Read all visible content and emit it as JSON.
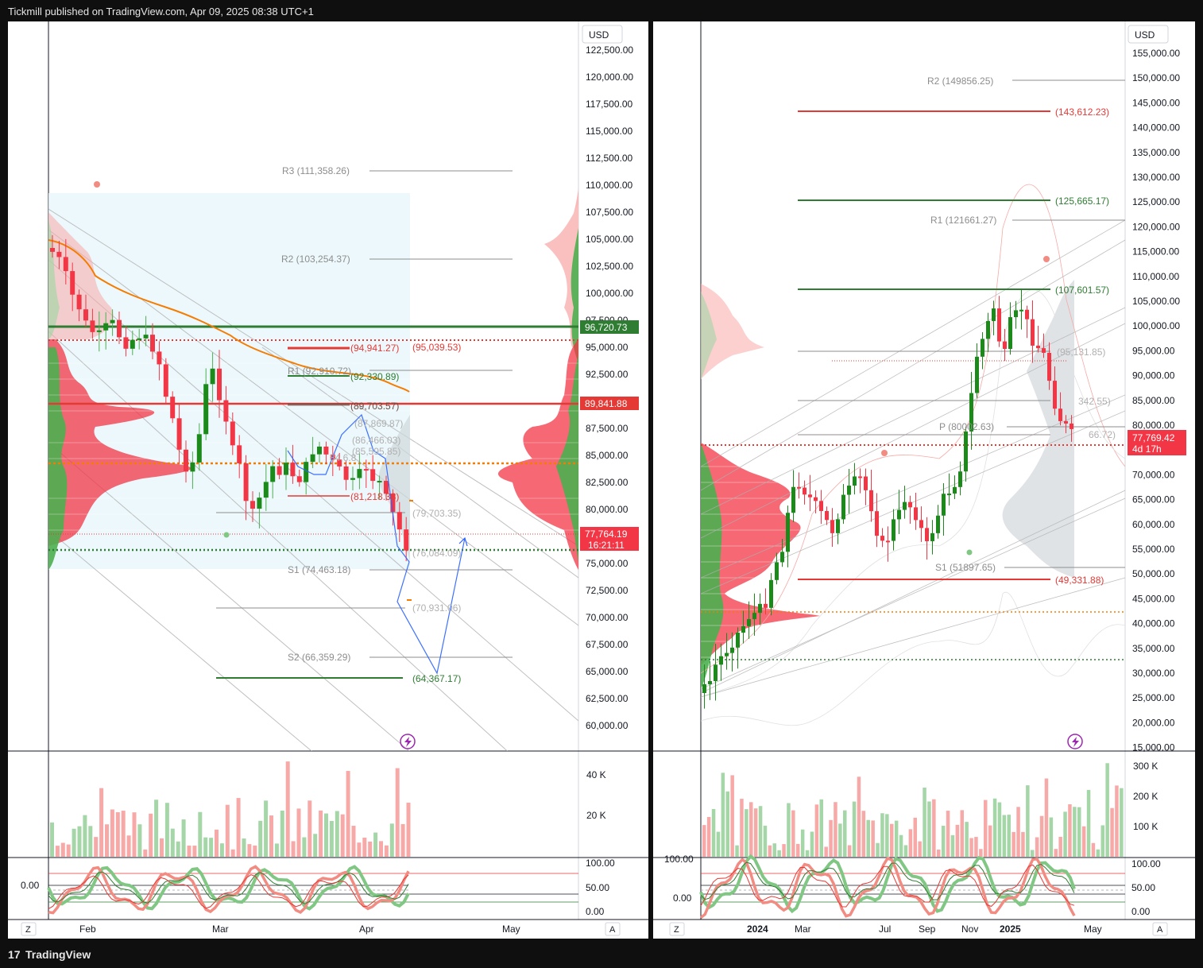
{
  "header": {
    "publish_text": "Tickmill published on TradingView.com, Apr 09, 2025 08:38 UTC+1"
  },
  "footer": {
    "brand": "TradingView",
    "logo_glyph": "17"
  },
  "left_chart": {
    "currency": "USD",
    "price_ticks": [
      "122,500.00",
      "120,000.00",
      "117,500.00",
      "115,000.00",
      "112,500.00",
      "110,000.00",
      "107,500.00",
      "105,000.00",
      "102,500.00",
      "100,000.00",
      "97,500.00",
      "95,000.00",
      "92,500.00",
      "90,000.00",
      "87,500.00",
      "85,000.00",
      "82,500.00",
      "80,000.00",
      "77,500.00",
      "75,000.00",
      "72,500.00",
      "70,000.00",
      "67,500.00",
      "65,000.00",
      "62,500.00",
      "60,000.00"
    ],
    "pivots": {
      "r3": "R3 (111,358.26)",
      "r2": "R2 (103,254.37)",
      "r1": "R1 (92,910.72)",
      "s1": "S1 (74,463.18)",
      "s2": "S2 (66,359.29)"
    },
    "levels": {
      "l1": "(94,941.27)",
      "l2": "(95,039.53)",
      "l3": "(92,330.89)",
      "l4": "(89,703.57)",
      "l5": "(87,869.87)",
      "l6": "(86,466.03)",
      "l7": "(85,595.85)",
      "l8": "(81,218.38)",
      "l9": "(79,703.35)",
      "l10": "(76,084.09)",
      "l11": "(70,931.06)",
      "l12": "(64,367.17)",
      "l13": "84,6.8"
    },
    "price_tags": {
      "green": "96,720.73",
      "red": "89,841.88",
      "current": "77,764.19",
      "countdown": "16:21:11"
    },
    "time_labels": [
      "Feb",
      "Mar",
      "Apr",
      "May"
    ],
    "volume_ticks": [
      "40 K",
      "20 K"
    ],
    "osc_ticks": [
      "100.00",
      "50.00",
      "0.00"
    ],
    "osc_left_value": "0.00",
    "corner_left": "Z",
    "corner_right": "A"
  },
  "right_chart": {
    "currency": "USD",
    "price_ticks": [
      "155,000.00",
      "150,000.00",
      "145,000.00",
      "140,000.00",
      "135,000.00",
      "130,000.00",
      "125,000.00",
      "120,000.00",
      "115,000.00",
      "110,000.00",
      "105,000.00",
      "100,000.00",
      "95,000.00",
      "90,000.00",
      "85,000.00",
      "80,000.00",
      "75,000.00",
      "70,000.00",
      "65,000.00",
      "60,000.00",
      "55,000.00",
      "50,000.00",
      "45,000.00",
      "40,000.00",
      "35,000.00",
      "30,000.00",
      "25,000.00",
      "20,000.00",
      "15,000.00"
    ],
    "pivots": {
      "r2": "R2 (149856.25)",
      "r1": "R1 (121661.27)",
      "p": "P (80002.63)",
      "s1": "S1 (51897.65)"
    },
    "levels": {
      "l1": "(143,612.23)",
      "l2": "(125,665.17)",
      "l3": "(107,601.57)",
      "l4": "(95,131.85)",
      "l5": "342.55)",
      "l6": "66.72)",
      "l7": "(49,331.88)"
    },
    "price_tags": {
      "current": "77,769.42",
      "countdown": "4d 17h"
    },
    "time_labels": [
      "2024",
      "Mar",
      "Jul",
      "Sep",
      "Nov",
      "2025",
      "May"
    ],
    "volume_ticks": [
      "300 K",
      "200 K",
      "100 K"
    ],
    "osc_ticks": [
      "100.00",
      "50.00",
      "0.00"
    ],
    "osc_left_values": [
      "100.00",
      "0.00"
    ],
    "corner_left": "Z",
    "corner_right": "A"
  },
  "colors": {
    "up": "#089981",
    "up_light": "#a5d6a7",
    "down": "#f23645",
    "down_light": "#f7a9a7",
    "orange": "#f57c00",
    "blue": "#2962ff",
    "green_line": "#2e7d32",
    "red_line": "#e53935",
    "grey": "#9e9e9e",
    "bg": "#ffffff",
    "frame": "#0f0f0f"
  }
}
